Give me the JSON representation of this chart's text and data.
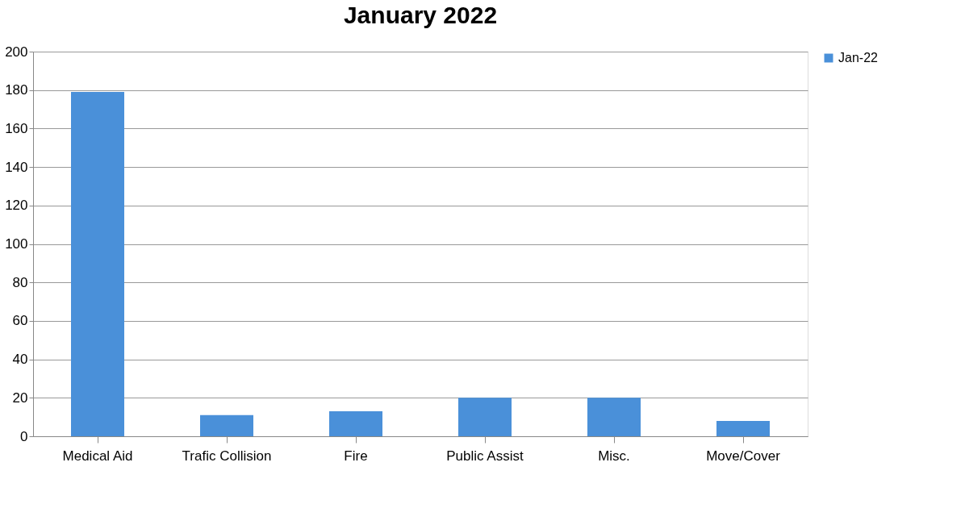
{
  "chart_data": {
    "type": "bar",
    "title": "January 2022",
    "categories": [
      "Medical Aid",
      "Trafic Collision",
      "Fire",
      "Public Assist",
      "Misc.",
      "Move/Cover"
    ],
    "series": [
      {
        "name": "Jan-22",
        "color": "#4a90d9",
        "values": [
          179,
          11,
          13,
          20,
          20,
          8
        ]
      }
    ],
    "ylim": [
      0,
      200
    ],
    "yticks": [
      0,
      20,
      40,
      60,
      80,
      100,
      120,
      140,
      160,
      180,
      200
    ],
    "grid": "y",
    "legend": "right"
  }
}
